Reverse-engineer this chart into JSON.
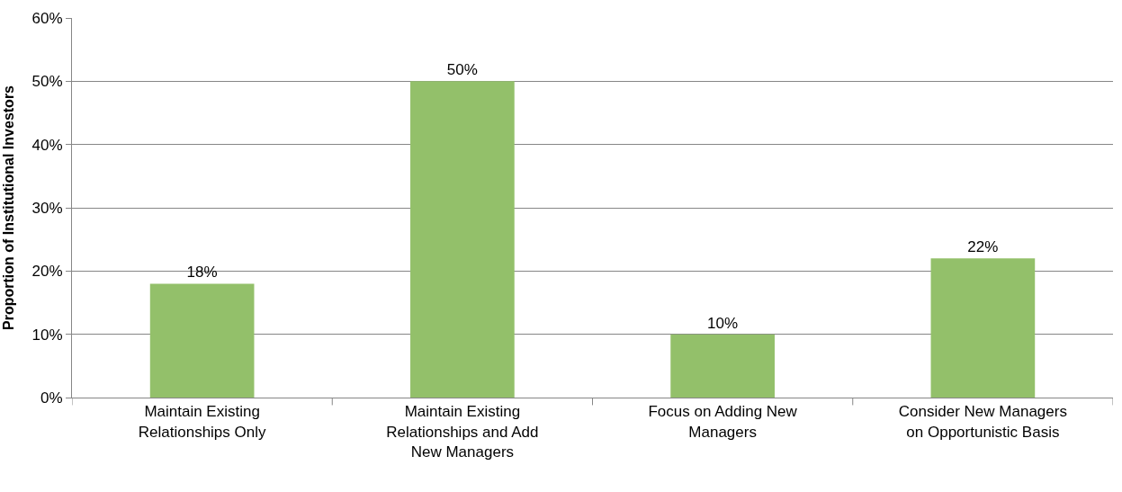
{
  "chart_data": {
    "type": "bar",
    "ylabel": "Proportion of Institutional Investors",
    "categories": [
      "Maintain Existing Relationships Only",
      "Maintain Existing Relationships and Add New Managers",
      "Focus on Adding New Managers",
      "Consider New Managers on Opportunistic Basis"
    ],
    "values": [
      18,
      50,
      10,
      22
    ],
    "color": "#93c06a",
    "value_labels": [
      "18%",
      "50%",
      "10%",
      "22%"
    ],
    "ylim": [
      0,
      60
    ],
    "yticks": [
      {
        "value": 0,
        "label": "0%"
      },
      {
        "value": 10,
        "label": "10%"
      },
      {
        "value": 20,
        "label": "20%"
      },
      {
        "value": 30,
        "label": "30%"
      },
      {
        "value": 40,
        "label": "40%"
      },
      {
        "value": 50,
        "label": "50%"
      },
      {
        "value": 60,
        "label": "60%"
      }
    ],
    "grid": "y"
  }
}
